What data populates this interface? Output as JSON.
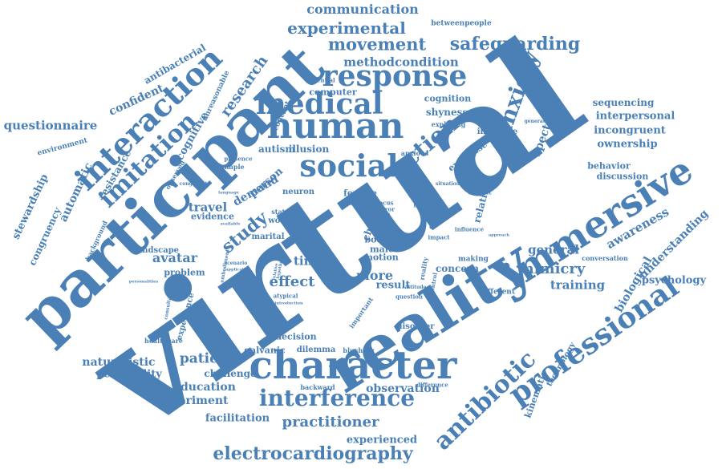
{
  "colors": {
    "word": "#4a80b5",
    "background": "#ffffff"
  },
  "words": [
    "virtual",
    "reality",
    "participant",
    "character",
    "immersive",
    "interaction",
    "human",
    "response",
    "medical",
    "social",
    "interference",
    "professional",
    "imitation",
    "antibiotic",
    "action",
    "anxiety",
    "electrocardiography",
    "experimental",
    "movement",
    "safeguarding",
    "communication",
    "methodcondition",
    "study",
    "practitioner",
    "mimicry",
    "effect",
    "patient",
    "research",
    "avatar",
    "time",
    "training",
    "general",
    "awareness",
    "understanding",
    "biological",
    "psychology",
    "interpersonal",
    "incongruent",
    "ownership",
    "sequencing",
    "behavior",
    "discussion",
    "conversation",
    "questionnaire",
    "confident",
    "antibacterial",
    "automatic",
    "resistance",
    "stewardship",
    "congruency",
    "environment",
    "cognitive",
    "unreasonable",
    "concept",
    "computer",
    "cognition",
    "shyness",
    "exploring",
    "betweenpeople",
    "autism",
    "illusion",
    "expertise",
    "interface",
    "spectrum",
    "generating",
    "travel",
    "demand",
    "evidence",
    "landscape",
    "problem",
    "more",
    "result",
    "concern",
    "making",
    "different",
    "experience",
    "healthcare",
    "naturalistic",
    "personality",
    "education",
    "experiment",
    "facilitation",
    "challenge",
    "galvanic",
    "decision",
    "dilemma",
    "blushing",
    "disorder",
    "observation",
    "backward",
    "difference",
    "experienced",
    "kinematic",
    "technology",
    "female",
    "child",
    "body",
    "male",
    "motion",
    "person",
    "neuron",
    "woman",
    "marital",
    "relation",
    "context",
    "influence",
    "studies",
    "interact",
    "increase",
    "impact",
    "question",
    "attitude",
    "level",
    "focus",
    "mirror",
    "load",
    "user",
    "ethic",
    "status",
    "trainee",
    "important",
    "atypical",
    "consultation",
    "scenario",
    "application",
    "personalities",
    "background",
    "observed",
    "congruent",
    "example",
    "presence",
    "potential",
    "anxious",
    "situation",
    "necessary",
    "approach",
    "introduction",
    "language",
    "available",
    "embodiment",
    "relative",
    "hypothesis",
    "reality_small",
    "control",
    "change"
  ]
}
